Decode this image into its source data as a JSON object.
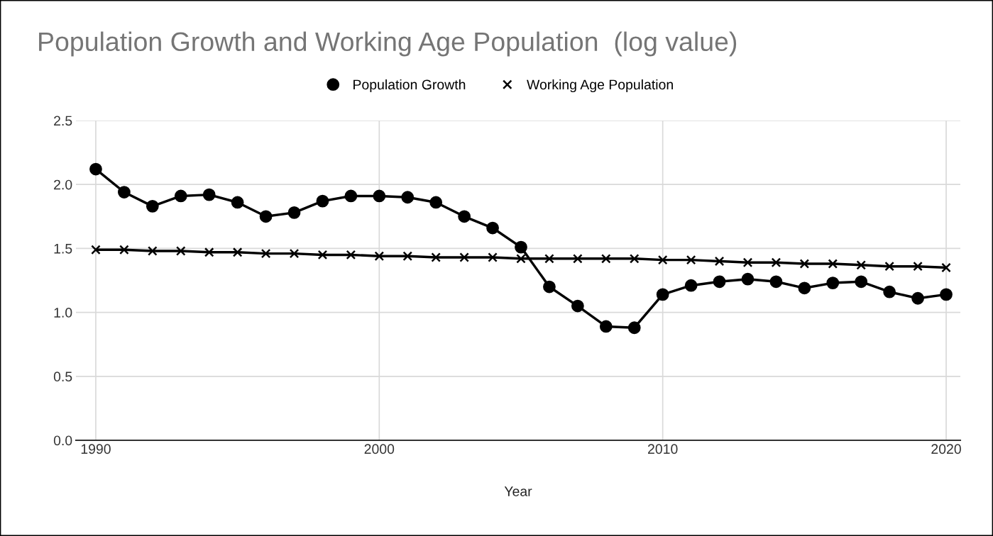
{
  "chart_data": {
    "type": "line",
    "title": "Population Growth and Working Age Population  (log value)",
    "xlabel": "Year",
    "x": [
      1990,
      1991,
      1992,
      1993,
      1994,
      1995,
      1996,
      1997,
      1998,
      1999,
      2000,
      2001,
      2002,
      2003,
      2004,
      2005,
      2006,
      2007,
      2008,
      2009,
      2010,
      2011,
      2012,
      2013,
      2014,
      2015,
      2016,
      2017,
      2018,
      2019,
      2020
    ],
    "series": [
      {
        "name": "Population Growth",
        "color": "#000000",
        "marker": "circle",
        "values": [
          2.12,
          1.94,
          1.83,
          1.91,
          1.92,
          1.86,
          1.75,
          1.78,
          1.87,
          1.91,
          1.91,
          1.9,
          1.86,
          1.75,
          1.66,
          1.51,
          1.2,
          1.05,
          0.89,
          0.88,
          1.14,
          1.21,
          1.24,
          1.26,
          1.24,
          1.19,
          1.23,
          1.24,
          1.16,
          1.11,
          1.14
        ]
      },
      {
        "name": "Working Age Population",
        "color": "#000000",
        "marker": "cross",
        "values": [
          1.49,
          1.49,
          1.48,
          1.48,
          1.47,
          1.47,
          1.46,
          1.46,
          1.45,
          1.45,
          1.44,
          1.44,
          1.43,
          1.43,
          1.43,
          1.42,
          1.42,
          1.42,
          1.42,
          1.42,
          1.41,
          1.41,
          1.4,
          1.39,
          1.39,
          1.38,
          1.38,
          1.37,
          1.36,
          1.36,
          1.35
        ]
      }
    ],
    "xlim": [
      1989.3,
      2020.5
    ],
    "xticks": [
      1990,
      2000,
      2010,
      2020
    ],
    "ylim": [
      0,
      2.5
    ],
    "yticks": [
      {
        "value": 0,
        "label": "0.0"
      },
      {
        "value": 0.5,
        "label": "0.5"
      },
      {
        "value": 1.0,
        "label": "1.0"
      },
      {
        "value": 1.5,
        "label": "1.5"
      },
      {
        "value": 2.0,
        "label": "2.0"
      },
      {
        "value": 2.5,
        "label": "2.5"
      }
    ],
    "grid": true,
    "legend": "top",
    "line_style": "solid"
  }
}
